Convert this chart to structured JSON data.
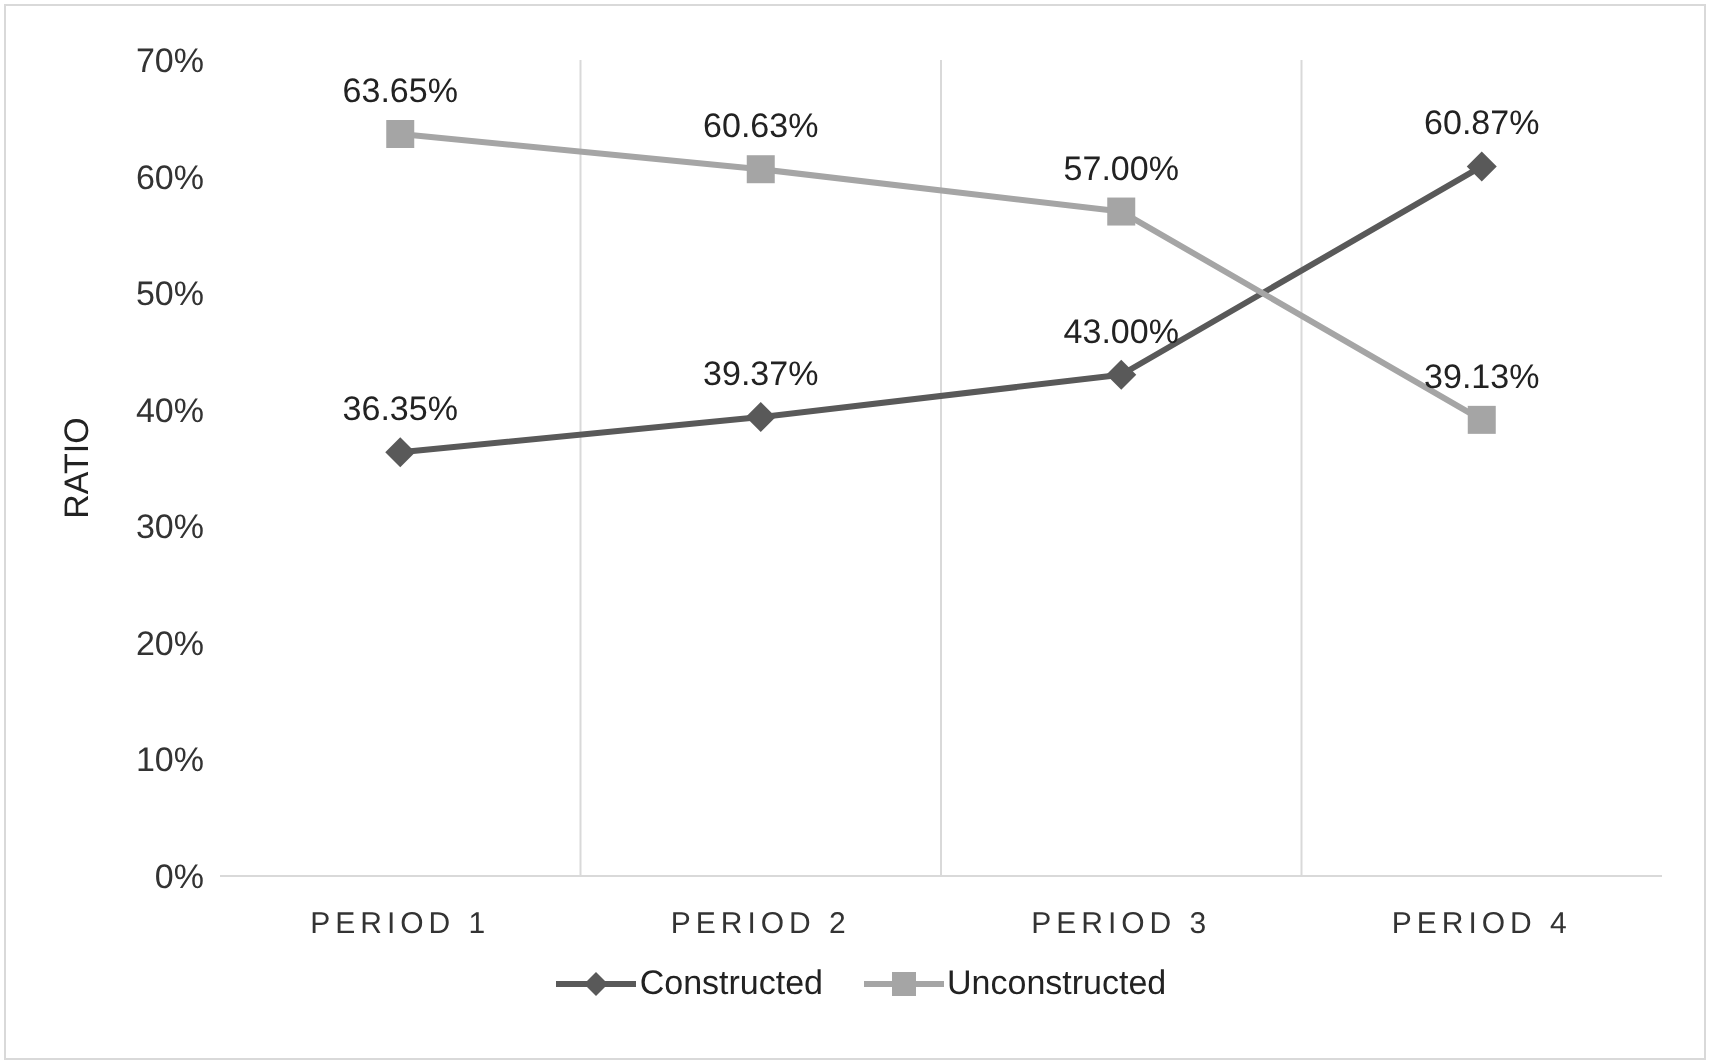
{
  "chart_data": {
    "type": "line",
    "ylabel": "RATIO",
    "categories": [
      "PERIOD 1",
      "PERIOD 2",
      "PERIOD 3",
      "PERIOD 4"
    ],
    "series": [
      {
        "name": "Constructed",
        "color": "#595959",
        "marker": "diamond",
        "values": [
          36.35,
          39.37,
          43.0,
          60.87
        ],
        "value_labels": [
          "36.35%",
          "39.37%",
          "43.00%",
          "60.87%"
        ]
      },
      {
        "name": "Unconstructed",
        "color": "#a5a5a5",
        "marker": "square",
        "values": [
          63.65,
          60.63,
          57.0,
          39.13
        ],
        "value_labels": [
          "63.65%",
          "60.63%",
          "57.00%",
          "39.13%"
        ]
      }
    ],
    "ylim": [
      0,
      70
    ],
    "yticks": [
      {
        "value": 0,
        "label": "0%"
      },
      {
        "value": 10,
        "label": "10%"
      },
      {
        "value": 20,
        "label": "20%"
      },
      {
        "value": 30,
        "label": "30%"
      },
      {
        "value": 40,
        "label": "40%"
      },
      {
        "value": 50,
        "label": "50%"
      },
      {
        "value": 60,
        "label": "60%"
      },
      {
        "value": 70,
        "label": "70%"
      }
    ],
    "grid": "x",
    "legend": "bottom",
    "line_style": "solid"
  }
}
